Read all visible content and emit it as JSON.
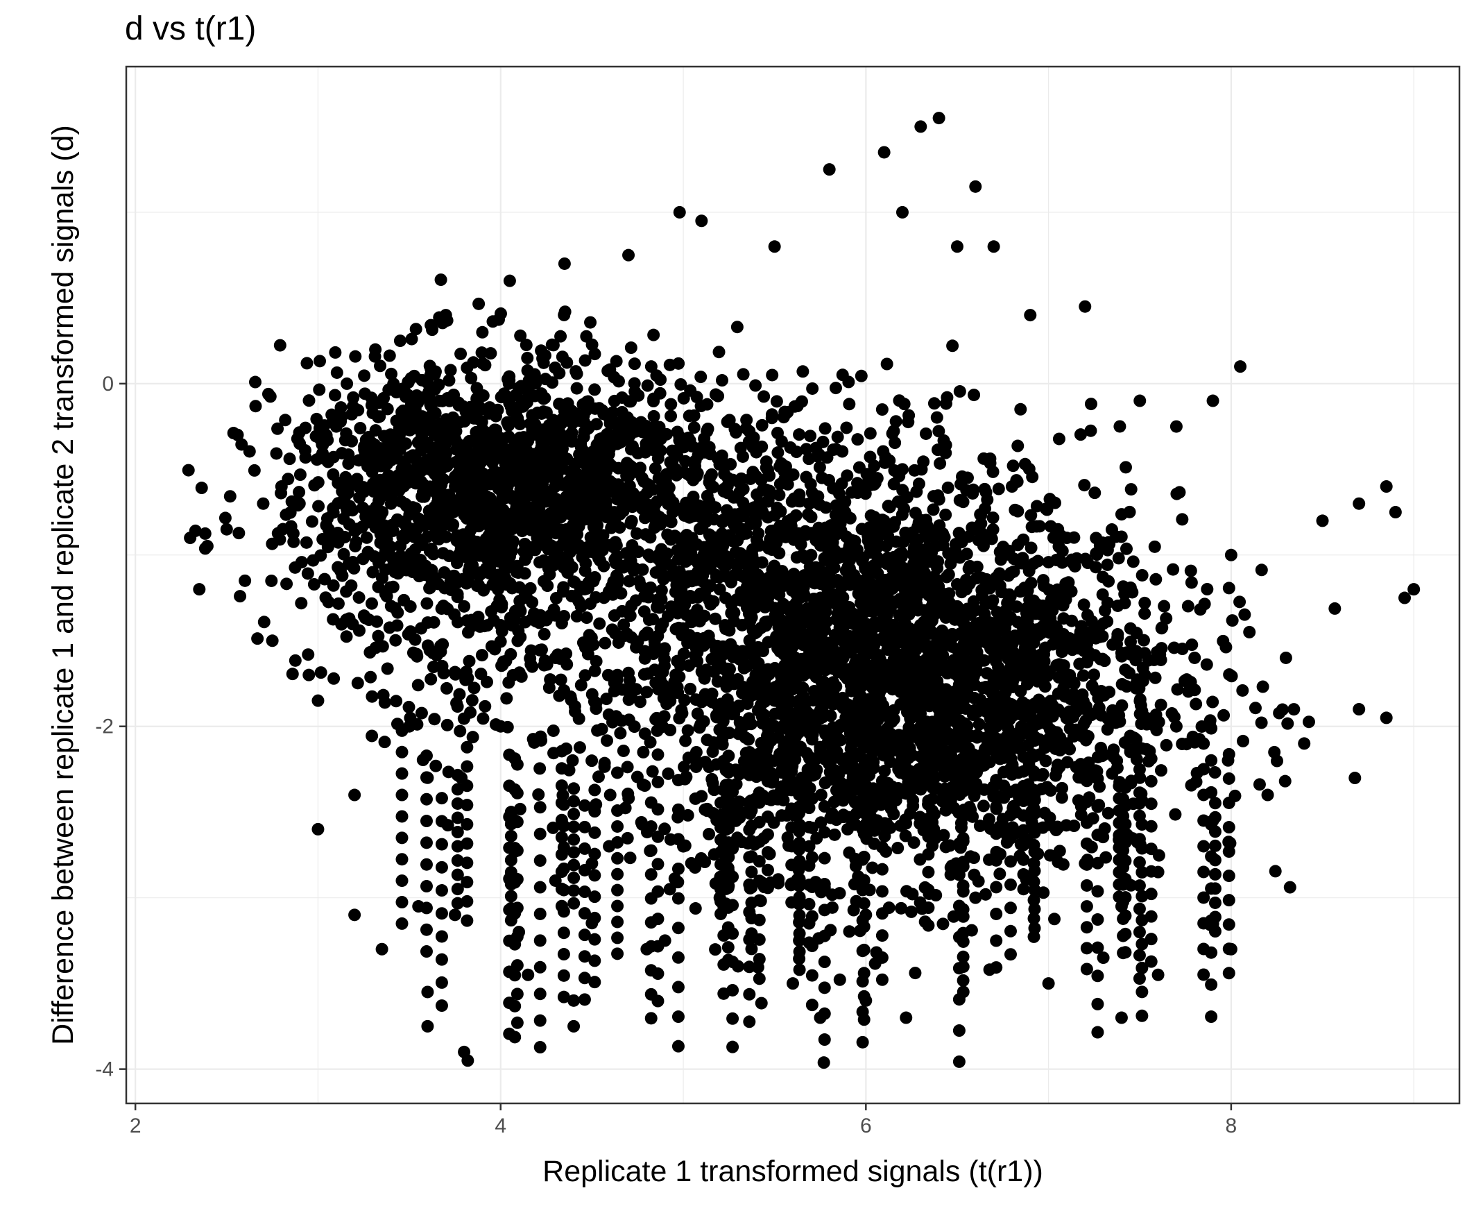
{
  "chart_data": {
    "type": "scatter",
    "title": "d vs t(r1)",
    "xlabel": "Replicate 1 transformed signals (t(r1))",
    "ylabel": "Difference between replicate 1 and replicate 2 transformed signals (d)",
    "xlim": [
      1.95,
      9.25
    ],
    "ylim": [
      -4.2,
      1.85
    ],
    "x_ticks": [
      2,
      4,
      6,
      8
    ],
    "y_ticks": [
      -4,
      -2,
      0
    ],
    "grid": true,
    "point_color": "#000000",
    "point_count_note": "thousands of overlapping points; representative sample listed",
    "points": [
      [
        2.3,
        -0.9
      ],
      [
        2.35,
        -1.2
      ],
      [
        2.5,
        -0.85
      ],
      [
        2.6,
        -1.15
      ],
      [
        2.7,
        -0.7
      ],
      [
        2.8,
        -0.6
      ],
      [
        2.75,
        -1.5
      ],
      [
        2.9,
        -0.35
      ],
      [
        2.95,
        -1.7
      ],
      [
        3.0,
        -1.85
      ],
      [
        3.0,
        -2.6
      ],
      [
        3.1,
        -0.25
      ],
      [
        3.2,
        -2.4
      ],
      [
        3.2,
        -3.1
      ],
      [
        3.3,
        -0.1
      ],
      [
        3.35,
        -3.3
      ],
      [
        3.45,
        0.25
      ],
      [
        3.5,
        -2.0
      ],
      [
        3.55,
        -3.05
      ],
      [
        3.6,
        -3.55
      ],
      [
        3.6,
        -3.75
      ],
      [
        3.7,
        0.4
      ],
      [
        3.75,
        -3.1
      ],
      [
        3.8,
        -3.9
      ],
      [
        3.82,
        -3.95
      ],
      [
        3.9,
        0.3
      ],
      [
        4.05,
        0.6
      ],
      [
        4.1,
        -3.2
      ],
      [
        4.15,
        -3.45
      ],
      [
        4.3,
        -2.9
      ],
      [
        4.35,
        0.7
      ],
      [
        4.4,
        -3.6
      ],
      [
        4.4,
        -3.75
      ],
      [
        4.7,
        0.75
      ],
      [
        4.8,
        -3.3
      ],
      [
        4.9,
        -3.25
      ],
      [
        4.98,
        1.0
      ],
      [
        5.1,
        0.95
      ],
      [
        5.3,
        -3.4
      ],
      [
        5.5,
        0.8
      ],
      [
        5.6,
        -3.5
      ],
      [
        5.75,
        -3.7
      ],
      [
        5.8,
        1.25
      ],
      [
        6.0,
        -3.6
      ],
      [
        6.1,
        1.35
      ],
      [
        6.2,
        1.0
      ],
      [
        6.22,
        -3.7
      ],
      [
        6.3,
        1.5
      ],
      [
        6.4,
        1.55
      ],
      [
        6.5,
        0.8
      ],
      [
        6.6,
        1.15
      ],
      [
        6.7,
        0.8
      ],
      [
        6.9,
        0.4
      ],
      [
        7.0,
        -3.5
      ],
      [
        7.2,
        0.45
      ],
      [
        7.3,
        -3.35
      ],
      [
        7.4,
        -3.7
      ],
      [
        7.5,
        -0.1
      ],
      [
        7.6,
        -3.45
      ],
      [
        7.7,
        -0.25
      ],
      [
        7.9,
        -0.1
      ],
      [
        8.0,
        -3.3
      ],
      [
        8.05,
        0.1
      ],
      [
        8.1,
        -1.45
      ],
      [
        8.3,
        -1.6
      ],
      [
        8.5,
        -0.8
      ],
      [
        8.7,
        -0.7
      ],
      [
        8.85,
        -0.6
      ],
      [
        8.9,
        -0.75
      ],
      [
        8.95,
        -1.25
      ],
      [
        9.0,
        -1.2
      ],
      [
        8.85,
        -1.95
      ],
      [
        8.7,
        -1.9
      ],
      [
        8.4,
        -2.1
      ],
      [
        8.2,
        -2.4
      ],
      [
        7.9,
        -2.55
      ],
      [
        7.6,
        -2.85
      ],
      [
        7.4,
        -3.05
      ],
      [
        3.4,
        -0.7
      ],
      [
        3.9,
        -0.4
      ],
      [
        4.2,
        -0.9
      ],
      [
        4.6,
        -0.3
      ],
      [
        4.3,
        -1.6
      ],
      [
        4.8,
        -1.8
      ],
      [
        5.2,
        -1.2
      ],
      [
        5.5,
        -2.2
      ],
      [
        5.7,
        -1.0
      ],
      [
        5.9,
        -2.6
      ],
      [
        6.1,
        -1.5
      ],
      [
        6.3,
        -2.0
      ],
      [
        6.5,
        -1.3
      ],
      [
        6.7,
        -2.4
      ],
      [
        6.9,
        -1.7
      ],
      [
        7.1,
        -2.1
      ],
      [
        7.3,
        -1.4
      ],
      [
        7.5,
        -2.3
      ],
      [
        7.1,
        -0.9
      ],
      [
        6.8,
        -0.6
      ],
      [
        6.2,
        -0.5
      ],
      [
        5.4,
        -0.4
      ],
      [
        5.0,
        -2.7
      ],
      [
        4.6,
        -2.4
      ],
      [
        3.8,
        -1.3
      ],
      [
        3.3,
        -1.1
      ],
      [
        3.6,
        -2.3
      ],
      [
        4.0,
        -2.0
      ],
      [
        7.8,
        -1.6
      ],
      [
        7.7,
        -2.0
      ],
      [
        8.0,
        -1.0
      ],
      [
        6.0,
        -3.1
      ],
      [
        6.6,
        -3.0
      ],
      [
        5.2,
        -3.0
      ],
      [
        4.5,
        -2.8
      ],
      [
        7.2,
        -2.8
      ]
    ]
  }
}
